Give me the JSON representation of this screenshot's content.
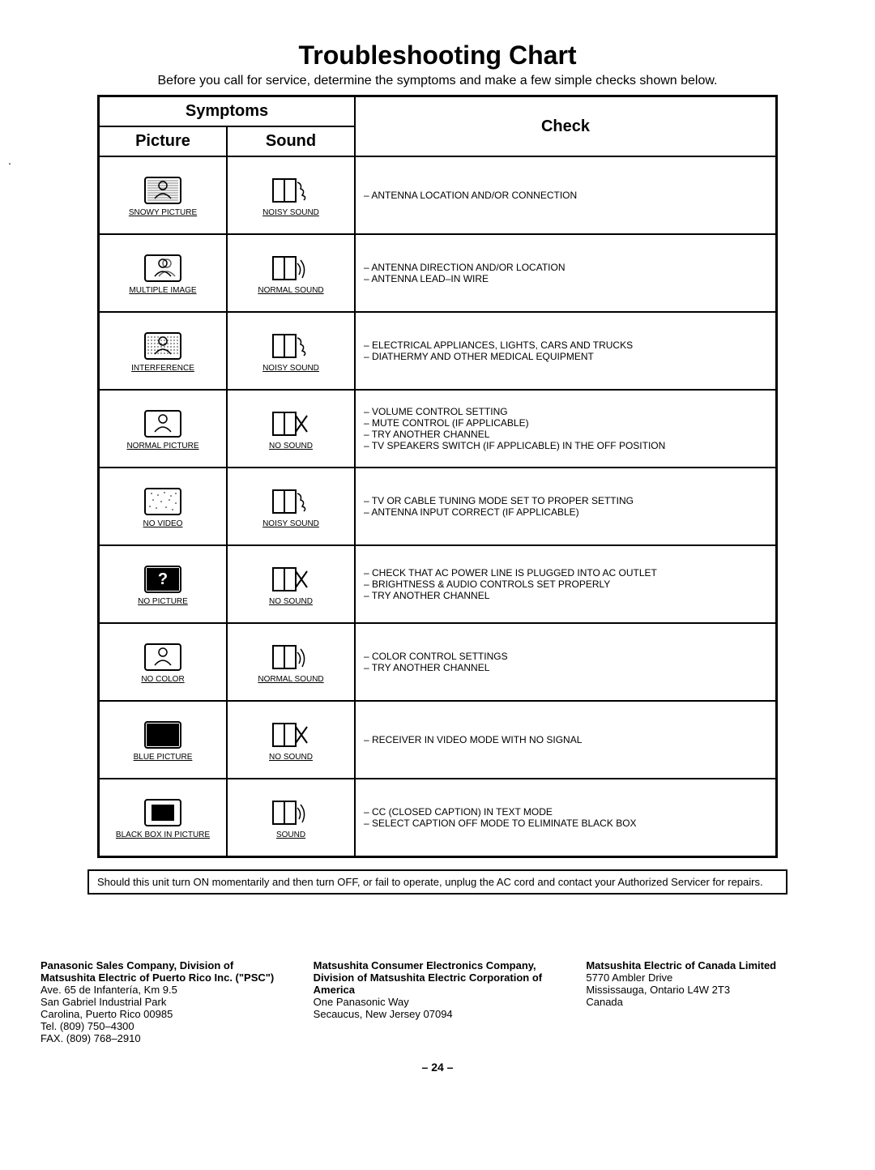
{
  "title": "Troubleshooting Chart",
  "subtitle": "Before you call for service, determine the symptoms and make a few simple checks shown below.",
  "headers": {
    "symptoms": "Symptoms",
    "picture": "Picture",
    "sound": "Sound",
    "check": "Check"
  },
  "rows": [
    {
      "picture_label": "SNOWY PICTURE",
      "picture_svg": "snowy",
      "sound_label": "NOISY SOUND",
      "sound_svg": "noisy",
      "checks": [
        "ANTENNA LOCATION AND/OR CONNECTION"
      ]
    },
    {
      "picture_label": "MULTIPLE IMAGE",
      "picture_svg": "multiple",
      "sound_label": "NORMAL SOUND",
      "sound_svg": "normal",
      "checks": [
        "ANTENNA DIRECTION AND/OR LOCATION",
        "ANTENNA LEAD–IN WIRE"
      ]
    },
    {
      "picture_label": "INTERFERENCE",
      "picture_svg": "interference",
      "sound_label": "NOISY SOUND",
      "sound_svg": "noisy",
      "checks": [
        "ELECTRICAL APPLIANCES, LIGHTS, CARS AND TRUCKS",
        "DIATHERMY AND OTHER MEDICAL EQUIPMENT"
      ]
    },
    {
      "picture_label": "NORMAL PICTURE",
      "picture_svg": "normalpic",
      "sound_label": "NO SOUND",
      "sound_svg": "nosound",
      "checks": [
        "VOLUME CONTROL SETTING",
        "MUTE CONTROL (IF APPLICABLE)",
        "TRY ANOTHER CHANNEL",
        "TV SPEAKERS SWITCH (IF APPLICABLE) IN THE OFF POSITION"
      ]
    },
    {
      "picture_label": "NO VIDEO",
      "picture_svg": "novideo",
      "sound_label": "NOISY SOUND",
      "sound_svg": "noisy",
      "checks": [
        "TV OR CABLE TUNING MODE SET TO PROPER SETTING",
        "ANTENNA INPUT CORRECT (IF APPLICABLE)"
      ]
    },
    {
      "picture_label": "NO PICTURE",
      "picture_svg": "nopicture",
      "sound_label": "NO SOUND",
      "sound_svg": "nosound",
      "checks": [
        "CHECK THAT AC POWER LINE  IS PLUGGED  INTO AC OUTLET",
        "BRIGHTNESS & AUDIO CONTROLS SET PROPERLY",
        "TRY ANOTHER CHANNEL"
      ]
    },
    {
      "picture_label": "NO COLOR",
      "picture_svg": "nocolor",
      "sound_label": "NORMAL SOUND",
      "sound_svg": "normal",
      "checks": [
        "COLOR CONTROL SETTINGS",
        "TRY ANOTHER CHANNEL"
      ]
    },
    {
      "picture_label": "BLUE PICTURE",
      "picture_svg": "bluepic",
      "sound_label": "NO SOUND",
      "sound_svg": "nosound",
      "checks": [
        "RECEIVER IN VIDEO MODE WITH NO SIGNAL"
      ]
    },
    {
      "picture_label": "BLACK BOX IN PICTURE",
      "picture_svg": "blackbox",
      "sound_label": "SOUND",
      "sound_svg": "normal",
      "checks": [
        "CC (CLOSED CAPTION) IN TEXT MODE",
        "SELECT CAPTION OFF MODE TO ELIMINATE BLACK BOX"
      ]
    }
  ],
  "note": "Should this unit turn ON momentarily and then turn OFF, or fail to operate, unplug the AC cord and contact your Authorized Servicer for repairs.",
  "footer": {
    "col1": {
      "bold": "Panasonic Sales Company, Division of Matsushita Electric of Puerto Rico Inc. (\"PSC\")",
      "rest": "Ave. 65 de Infantería, Km 9.5\nSan Gabriel Industrial Park\nCarolina, Puerto Rico 00985\nTel. (809) 750–4300\nFAX. (809) 768–2910"
    },
    "col2": {
      "bold": "Matsushita Consumer Electronics Company, Division of Matsushita Electric Corporation of America",
      "rest": "One Panasonic Way\nSecaucus, New Jersey 07094"
    },
    "col3": {
      "bold": "Matsushita Electric of Canada Limited",
      "rest": "5770 Ambler Drive\nMississauga, Ontario L4W 2T3\nCanada"
    }
  },
  "page_number": "– 24 –",
  "colors": {
    "text": "#000000",
    "bg": "#ffffff",
    "border": "#000000"
  }
}
